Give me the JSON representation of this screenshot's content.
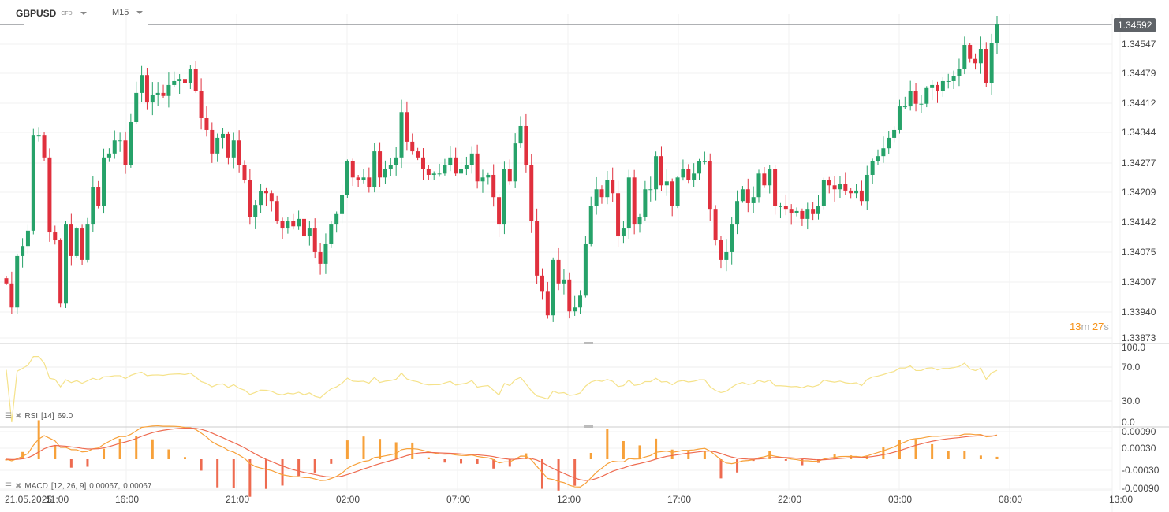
{
  "header": {
    "symbol": "GBPUSD",
    "symbol_type": "CFD",
    "timeframe": "M15"
  },
  "current_price": "1.34592",
  "countdown": {
    "minutes": "13",
    "minutes_unit": "m",
    "seconds": "27",
    "seconds_unit": "s"
  },
  "colors": {
    "up": "#26a269",
    "down": "#e0303d",
    "rsi": "#f5e28a",
    "macd": "#f7a13a",
    "signal": "#ee6b50",
    "hist_up": "#f7a13a",
    "hist_down": "#ee6b50"
  },
  "price_axis": [
    "1.34547",
    "1.34479",
    "1.34412",
    "1.34344",
    "1.34277",
    "1.34209",
    "1.34142",
    "1.34075",
    "1.34007",
    "1.33940",
    "1.33873"
  ],
  "rsi_axis": [
    "100.0",
    "70.0",
    "30.0",
    "0.0"
  ],
  "macd_axis": [
    "0.00090",
    "0.00030",
    "-0.00030",
    "-0.00090"
  ],
  "time_axis": [
    "21.05.2025",
    "11:00",
    "16:00",
    "21:00",
    "02:00",
    "07:00",
    "12:00",
    "17:00",
    "22:00",
    "03:00",
    "08:00",
    "13:00"
  ],
  "rsi_legend": {
    "name": "RSI",
    "params": "[14]",
    "value": "69.0"
  },
  "macd_legend": {
    "name": "MACD",
    "params": "[12, 26, 9]",
    "value": "0.00067,",
    "signal": "0.00067"
  },
  "chart_data": {
    "type": "candlestick",
    "symbol": "GBPUSD",
    "interval": "15m",
    "ylim": [
      1.33873,
      1.34592
    ],
    "first_open": 1.3401,
    "close": [
      1.33998,
      1.33943,
      1.34061,
      1.34084,
      1.34119,
      1.34337,
      1.34337,
      1.34287,
      1.34115,
      1.34097,
      1.33952,
      1.34133,
      1.34061,
      1.34124,
      1.34052,
      1.34133,
      1.34218,
      1.34175,
      1.34287,
      1.34296,
      1.34326,
      1.34326,
      1.34269,
      1.34368,
      1.34435,
      1.34476,
      1.34413,
      1.34431,
      1.34435,
      1.34428,
      1.34453,
      1.34462,
      1.34467,
      1.34458,
      1.34489,
      1.3444,
      1.34377,
      1.3435,
      1.34296,
      1.34332,
      1.34341,
      1.34287,
      1.34326,
      1.34269,
      1.34236,
      1.34151,
      1.34178,
      1.34209,
      1.34205,
      1.34187,
      1.34142,
      1.34124,
      1.34142,
      1.34129,
      1.34146,
      1.34106,
      1.34124,
      1.3407,
      1.34043,
      1.34088,
      1.34133,
      1.34157,
      1.342,
      1.34278,
      1.34241,
      1.34236,
      1.34241,
      1.34218,
      1.34301,
      1.34241,
      1.3426,
      1.34269,
      1.34287,
      1.34391,
      1.34323,
      1.34301,
      1.34287,
      1.3426,
      1.34247,
      1.3425,
      1.3425,
      1.34269,
      1.34287,
      1.3425,
      1.3426,
      1.34269,
      1.34296,
      1.34232,
      1.34241,
      1.34247,
      1.34196,
      1.34133,
      1.3426,
      1.34232,
      1.34319,
      1.34359,
      1.34269,
      1.34142,
      1.34016,
      1.33979,
      1.33925,
      1.34052,
      1.33998,
      1.34007,
      1.33934,
      1.33943,
      1.3397,
      1.34088,
      1.34175,
      1.34214,
      1.34196,
      1.34236,
      1.34205,
      1.34106,
      1.34124,
      1.34241,
      1.34133,
      1.34151,
      1.34214,
      1.34214,
      1.3429,
      1.34223,
      1.34232,
      1.34175,
      1.34241,
      1.3426,
      1.34236,
      1.3425,
      1.34278,
      1.34278,
      1.34169,
      1.34097,
      1.34052,
      1.3407,
      1.34133,
      1.34187,
      1.34214,
      1.34182,
      1.34196,
      1.3425,
      1.34223,
      1.3426,
      1.34175,
      1.34175,
      1.34169,
      1.3416,
      1.34164,
      1.34146,
      1.34169,
      1.34157,
      1.34175,
      1.34236,
      1.34223,
      1.34214,
      1.34227,
      1.34211,
      1.34205,
      1.34211,
      1.34187,
      1.34247,
      1.34278,
      1.3429,
      1.34308,
      1.34332,
      1.3435,
      1.34404,
      1.34404,
      1.3444,
      1.3441,
      1.3441,
      1.34446,
      1.34453,
      1.3444,
      1.34462,
      1.34462,
      1.34473,
      1.34489,
      1.34545,
      1.34513,
      1.34503,
      1.34536,
      1.34458,
      1.34549,
      1.34592
    ]
  }
}
